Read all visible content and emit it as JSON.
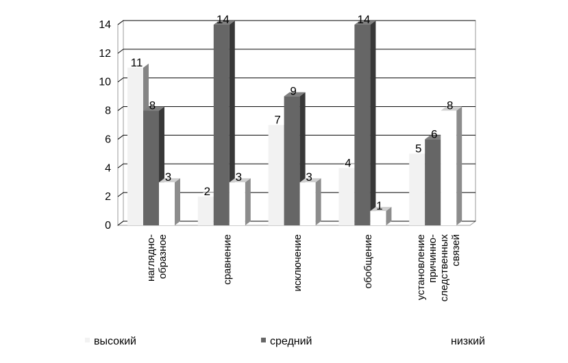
{
  "chart_data": {
    "type": "bar",
    "title": "",
    "xlabel": "",
    "ylabel": "",
    "ylim": [
      0,
      14
    ],
    "yticks": [
      "0",
      "2",
      "4",
      "6",
      "8",
      "10",
      "12",
      "14"
    ],
    "grid": true,
    "legend_position": "bottom",
    "categories": [
      [
        "наглядно-",
        "образное"
      ],
      [
        "сравнение"
      ],
      [
        "исключение"
      ],
      [
        "обобщение"
      ],
      [
        "установление",
        "причинно-",
        "следственных",
        "связей"
      ]
    ],
    "series": [
      {
        "name": "высокий",
        "values": [
          11,
          2,
          7,
          4,
          5
        ],
        "color": "#f2f2f2"
      },
      {
        "name": "средний",
        "values": [
          8,
          14,
          9,
          14,
          6
        ],
        "color": "#666666"
      },
      {
        "name": "низкий",
        "values": [
          3,
          3,
          3,
          1,
          8
        ],
        "color": "#ffffff"
      }
    ]
  }
}
